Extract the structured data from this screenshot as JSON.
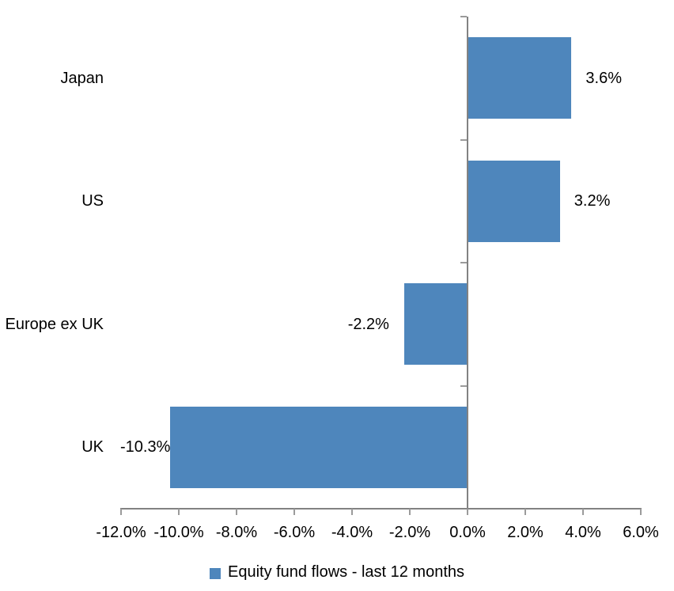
{
  "chart_data": {
    "type": "bar",
    "orientation": "horizontal",
    "title": "",
    "categories": [
      "Japan",
      "US",
      "Europe ex UK",
      "UK"
    ],
    "values": [
      3.6,
      3.2,
      -2.2,
      -10.3
    ],
    "data_labels": [
      "3.6%",
      "3.2%",
      "-2.2%",
      "-10.3%"
    ],
    "series_name": "Equity fund flows - last 12 months",
    "xlim": [
      -12,
      6
    ],
    "x_ticks": [
      -12,
      -10,
      -8,
      -6,
      -4,
      -2,
      0,
      2,
      4,
      6
    ],
    "x_tick_labels": [
      "-12.0%",
      "-10.0%",
      "-8.0%",
      "-6.0%",
      "-4.0%",
      "-2.0%",
      "0.0%",
      "2.0%",
      "4.0%",
      "6.0%"
    ],
    "grid": false,
    "legend_position": "bottom",
    "colors": {
      "bar": "#4E86BC",
      "axis_line": "#828282",
      "tick": "#9B9B9B",
      "text": "#000000",
      "background": "#FFFFFF"
    }
  },
  "legend": {
    "label": "Equity fund flows - last 12 months"
  }
}
